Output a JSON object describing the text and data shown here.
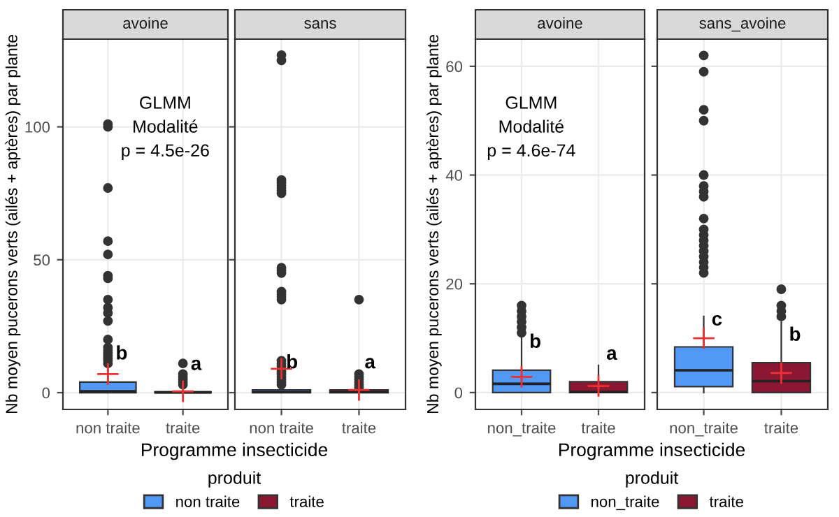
{
  "chart_data": [
    {
      "type": "box",
      "title": "avoine",
      "ylabel": "Nb moyen pucerons verts (ailés + aptères) par plante",
      "xlabel": "Programme insecticide",
      "legend_title": "produit",
      "legend": "bottom",
      "grid": true,
      "categories": [
        "non traite",
        "traite"
      ],
      "ylim": [
        -6.3,
        133
      ],
      "yticks": [
        0,
        50,
        100
      ],
      "series": [
        {
          "name": "non traite",
          "color": "#5199f5",
          "boxes": [
            {
              "q1": 0,
              "median": 0.5,
              "q3": 4,
              "high": 10,
              "mean": 7,
              "outliers": [
                100,
                101,
                77,
                57,
                52,
                44,
                43,
                35,
                32,
                30,
                27,
                20,
                17,
                16,
                15,
                14,
                13,
                12,
                11
              ]
            },
            null
          ]
        },
        {
          "name": "traite",
          "color": "#8b1733",
          "boxes": [
            null,
            {
              "q1": 0,
              "median": 0.1,
              "q3": 0.3,
              "high": 0.6,
              "mean": 0.5,
              "outliers": [
                11,
                7,
                6,
                5,
                4,
                3
              ]
            }
          ]
        }
      ],
      "annotations": [
        "GLMM\nModalité\np = 4.5e-26",
        {
          "text": "b",
          "x": "non traite",
          "y": 11
        },
        {
          "text": "a",
          "x": "traite",
          "y": 7
        }
      ]
    },
    {
      "type": "box",
      "title": "sans",
      "tick_labels": "x",
      "grid": true,
      "categories": [
        "non traite",
        "traite"
      ],
      "ylim": [
        -6.3,
        133
      ],
      "yticks": [
        0,
        50,
        100
      ],
      "series": [
        {
          "color": "#5199f5",
          "boxes": [
            {
              "q1": 0,
              "median": 0.2,
              "q3": 1,
              "high": 2,
              "mean": 9,
              "outliers": [
                127,
                125,
                80,
                79,
                78,
                77,
                76,
                75,
                47,
                46,
                45,
                38,
                37,
                36,
                35,
                12,
                11,
                10,
                8,
                7,
                6,
                5,
                4,
                3
              ]
            },
            null
          ]
        },
        {
          "color": "#8b1733",
          "boxes": [
            null,
            {
              "q1": 0,
              "median": 0.2,
              "q3": 1,
              "high": 1.5,
              "mean": 1,
              "outliers": [
                35,
                7,
                6,
                5,
                4,
                3,
                2
              ]
            }
          ]
        }
      ],
      "annotations": [
        "b",
        "a"
      ]
    },
    {
      "type": "box",
      "title": "avoine",
      "ylabel": "Nb moyen pucerons verts (ailés + aptères) par plante",
      "xlabel": "Programme insecticide",
      "legend_title": "produit",
      "legend": "bottom",
      "grid": true,
      "categories": [
        "non_traite",
        "traite"
      ],
      "ylim": [
        -3.1,
        65
      ],
      "yticks": [
        0,
        20,
        40,
        60
      ],
      "series": [
        {
          "name": "non_traite",
          "color": "#5199f5",
          "boxes": [
            {
              "q1": 0,
              "median": 1.6,
              "q3": 4.1,
              "high": 10,
              "mean": 2.9,
              "outliers": [
                11,
                12,
                13,
                14,
                15,
                16
              ]
            },
            null
          ]
        },
        {
          "name": "traite",
          "color": "#8b1733",
          "boxes": [
            null,
            {
              "q1": 0,
              "median": 0.1,
              "q3": 2,
              "high": 5,
              "mean": 1.2
            }
          ]
        }
      ],
      "annotations": [
        "GLMM\nModalité\np = 4.6e-74",
        {
          "text": "b",
          "x": "non_traite",
          "y": 7.5
        },
        {
          "text": "a",
          "x": "traite",
          "y": 5.3
        }
      ]
    },
    {
      "type": "box",
      "title": "sans_avoine",
      "tick_labels": "x",
      "grid": true,
      "categories": [
        "non_traite",
        "traite"
      ],
      "ylim": [
        -3.1,
        65
      ],
      "yticks": [
        0,
        20,
        40,
        60
      ],
      "series": [
        {
          "color": "#5199f5",
          "boxes": [
            {
              "low": 0,
              "q1": 1.1,
              "median": 4.1,
              "q3": 8.4,
              "high": 14,
              "mean": 10,
              "outliers": [
                22,
                23,
                24,
                25,
                26,
                27,
                28,
                29,
                30,
                32,
                36,
                37,
                38,
                40,
                50,
                52,
                59,
                62
              ]
            },
            null
          ]
        },
        {
          "color": "#8b1733",
          "boxes": [
            null,
            {
              "q1": 0,
              "median": 2.1,
              "q3": 5.5,
              "high": 13,
              "mean": 3.6,
              "outliers": [
                14,
                15,
                16,
                19
              ]
            }
          ]
        }
      ],
      "annotations": [
        {
          "text": "c",
          "x": "non_traite",
          "y": 11.6
        },
        {
          "text": "b",
          "x": "traite",
          "y": 8.8
        }
      ]
    }
  ]
}
